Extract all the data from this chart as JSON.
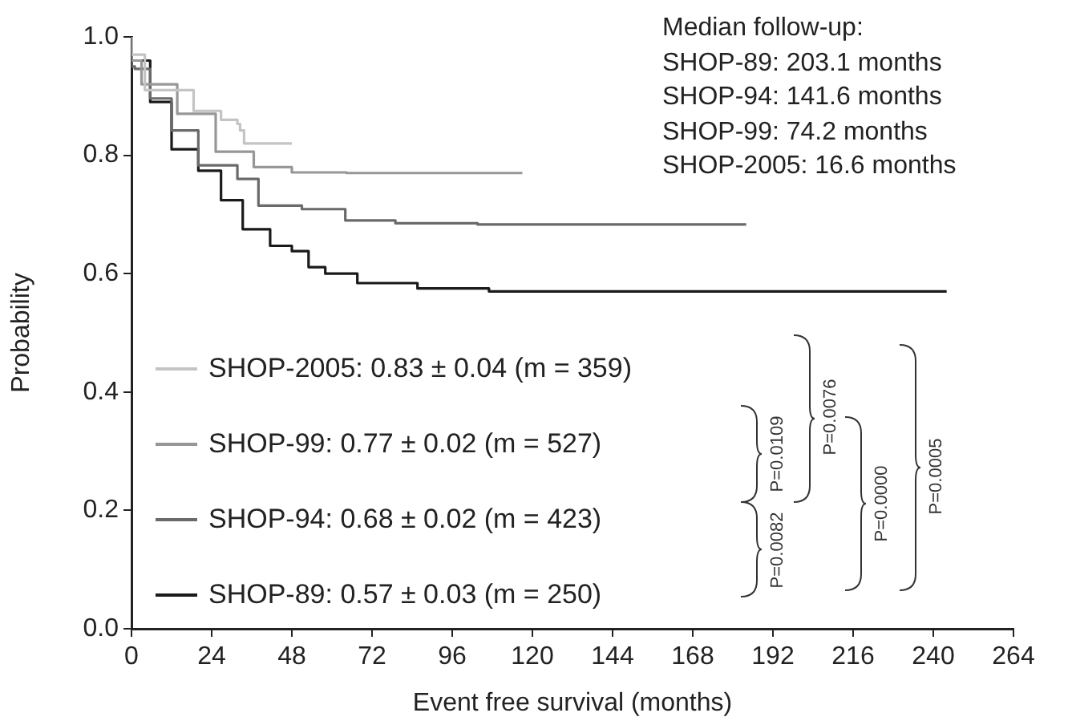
{
  "chart_data": {
    "type": "step",
    "xlabel": "Event free survival (months)",
    "ylabel": "Probability",
    "xlim": [
      0,
      264
    ],
    "xticks": [
      0,
      24,
      48,
      72,
      96,
      120,
      144,
      168,
      192,
      216,
      240,
      264
    ],
    "ylim": [
      0,
      1
    ],
    "yticks": [
      {
        "value": 0,
        "label": "0.0"
      },
      {
        "value": 0.2,
        "label": "0.2"
      },
      {
        "value": 0.4,
        "label": "0.4"
      },
      {
        "value": 0.6,
        "label": "0.6"
      },
      {
        "value": 0.8,
        "label": "0.8"
      },
      {
        "value": 1,
        "label": "1.0"
      }
    ],
    "grid": false,
    "legend": "bottom left",
    "marker": "none",
    "line_style": "solid",
    "series": [
      {
        "name": "SHOP-2005: 0.83 ± 0.04 (m = 359)",
        "color": "#c4c4c4",
        "x": [
          0,
          4,
          18.6,
          26.8,
          31.7,
          32.5,
          33.7,
          37.6,
          48
        ],
        "values": [
          1,
          0.97,
          0.91,
          0.875,
          0.86,
          0.853,
          0.842,
          0.82,
          0.82
        ]
      },
      {
        "name": "SHOP-99: 0.77 ± 0.02 (m = 527)",
        "color": "#979797",
        "x": [
          0,
          3,
          13.7,
          25.2,
          36.6,
          48,
          64.4,
          117
        ],
        "values": [
          1,
          0.96,
          0.92,
          0.87,
          0.806,
          0.78,
          0.771,
          0.77
        ]
      },
      {
        "name": "SHOP-94: 0.68 ± 0.02 (m = 423)",
        "color": "#6a6a6a",
        "x": [
          0,
          1,
          5.6,
          12,
          20,
          31.7,
          38,
          51,
          64,
          79,
          103.6,
          184
        ],
        "values": [
          1,
          0.95,
          0.946,
          0.896,
          0.842,
          0.783,
          0.76,
          0.715,
          0.709,
          0.69,
          0.685,
          0.683
        ]
      },
      {
        "name": "SHOP-89: 0.57 ± 0.03 (m = 250)",
        "color": "#1a1a1a",
        "x": [
          0,
          1,
          5.6,
          12,
          20,
          26.8,
          33.3,
          41.5,
          48,
          53,
          58,
          62.7,
          67.6,
          85.6,
          107,
          128,
          244
        ],
        "values": [
          1,
          0.96,
          0.96,
          0.89,
          0.81,
          0.774,
          0.724,
          0.675,
          0.647,
          0.638,
          0.611,
          0.6,
          0.6,
          0.584,
          0.575,
          0.57,
          0.57
        ]
      }
    ],
    "annotations": [
      "Median follow-up:",
      "SHOP-89: 203.1 months",
      "SHOP-94: 141.6 months",
      "SHOP-99: 74.2 months",
      "SHOP-2005: 16.6 months",
      "P=0.0109",
      "P=0.0082",
      "P=0.0076",
      "P=0.0000",
      "P=0.0005"
    ]
  }
}
